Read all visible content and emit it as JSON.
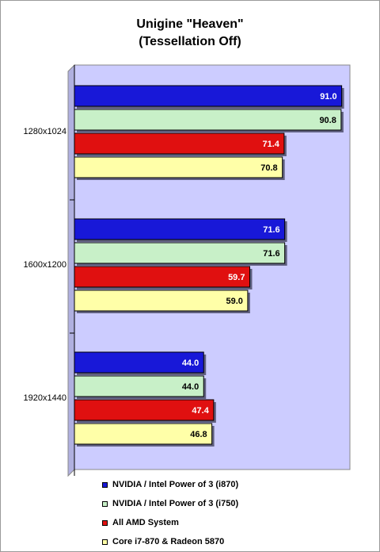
{
  "chart_data": {
    "type": "bar",
    "orientation": "horizontal",
    "title": "Unigine \"Heaven\"",
    "subtitle": "(Tessellation Off)",
    "categories": [
      "1280x1024",
      "1600x1200",
      "1920x1440"
    ],
    "series": [
      {
        "name": "NVIDIA / Intel Power of 3 (i870)",
        "color": "#1818d8",
        "label_color": "#ffffff",
        "values": [
          91.0,
          71.6,
          44.0
        ],
        "labels": [
          "91.0",
          "71.6",
          "44.0"
        ]
      },
      {
        "name": "NVIDIA / Intel Power of 3 (i750)",
        "color": "#c8f0c8",
        "label_color": "#000000",
        "values": [
          90.8,
          71.6,
          44.0
        ],
        "labels": [
          "90.8",
          "71.6",
          "44.0"
        ]
      },
      {
        "name": "All AMD System",
        "color": "#e01010",
        "label_color": "#ffffff",
        "values": [
          71.4,
          59.7,
          47.4
        ],
        "labels": [
          "71.4",
          "59.7",
          "47.4"
        ]
      },
      {
        "name": "Core i7-870 & Radeon 5870",
        "color": "#ffffa8",
        "label_color": "#000000",
        "values": [
          70.8,
          59.0,
          46.8
        ],
        "labels": [
          "70.8",
          "59.0",
          "46.8"
        ]
      }
    ],
    "xlim": [
      0,
      100
    ],
    "plot_background": "#ccccff",
    "grid": false,
    "legend_position": "bottom"
  }
}
